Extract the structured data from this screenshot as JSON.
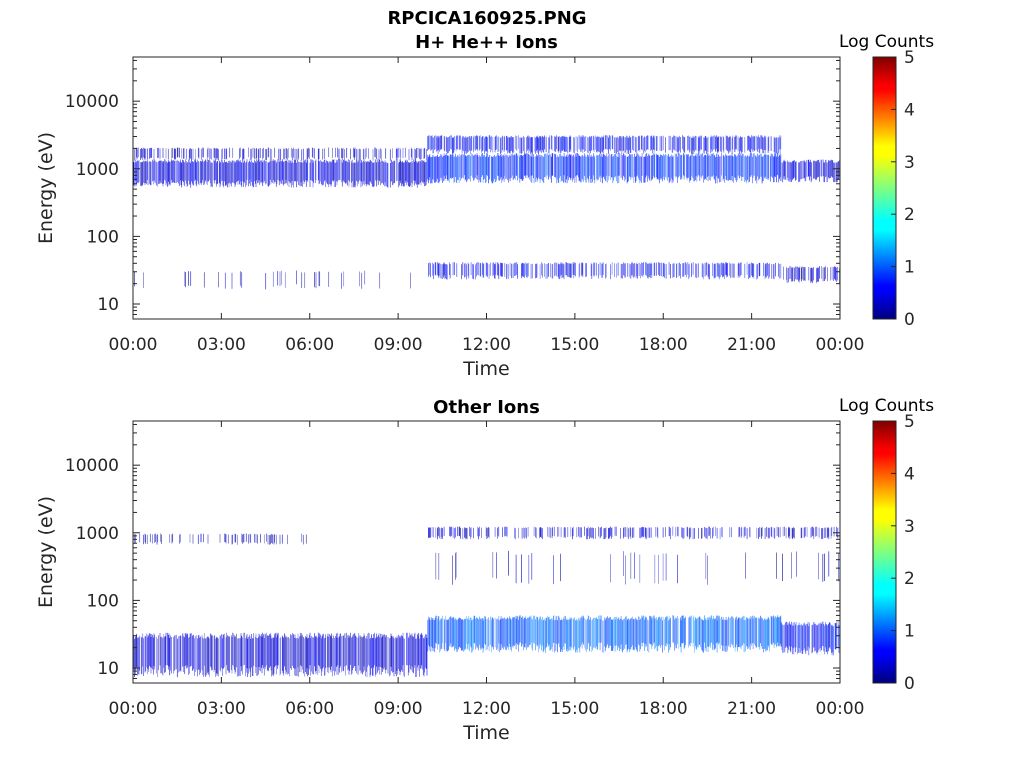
{
  "figure": {
    "title_line1": "RPCICA160925.PNG"
  },
  "chart_data": [
    {
      "type": "heatmap",
      "title": "H+ He++ Ions",
      "xlabel": "Time",
      "ylabel": "Energy (eV)",
      "y_scale": "log",
      "ylim": [
        6,
        45000
      ],
      "xlim_hours": [
        0,
        24
      ],
      "x_ticks": [
        "00:00",
        "03:00",
        "06:00",
        "09:00",
        "12:00",
        "15:00",
        "18:00",
        "21:00",
        "00:00"
      ],
      "y_ticks": [
        "10",
        "100",
        "1000",
        "10000"
      ],
      "colorbar": {
        "title": "Log Counts",
        "range": [
          0,
          5
        ],
        "ticks": [
          "0",
          "1",
          "2",
          "3",
          "4",
          "5"
        ],
        "colormap": "jet"
      },
      "bands": [
        {
          "t0": 0.0,
          "t1": 10.0,
          "e0": 600,
          "e1": 1300,
          "level": 0.45,
          "density": 0.95
        },
        {
          "t0": 0.0,
          "t1": 10.0,
          "e0": 1400,
          "e1": 2000,
          "level": 0.35,
          "density": 0.45
        },
        {
          "t0": 10.0,
          "t1": 22.0,
          "e0": 700,
          "e1": 1600,
          "level": 0.85,
          "density": 0.95
        },
        {
          "t0": 10.0,
          "t1": 22.0,
          "e0": 1800,
          "e1": 3000,
          "level": 0.6,
          "density": 0.75
        },
        {
          "t0": 22.0,
          "t1": 24.0,
          "e0": 700,
          "e1": 1300,
          "level": 0.45,
          "density": 0.9
        },
        {
          "t0": 10.0,
          "t1": 22.0,
          "e0": 25,
          "e1": 40,
          "level": 0.6,
          "density": 0.55
        },
        {
          "t0": 22.0,
          "t1": 24.0,
          "e0": 22,
          "e1": 35,
          "level": 0.35,
          "density": 0.6
        },
        {
          "t0": 0.0,
          "t1": 10.0,
          "e0": 18,
          "e1": 30,
          "level": 0.2,
          "density": 0.08
        }
      ]
    },
    {
      "type": "heatmap",
      "title": "Other Ions",
      "xlabel": "Time",
      "ylabel": "Energy (eV)",
      "y_scale": "log",
      "ylim": [
        6,
        45000
      ],
      "xlim_hours": [
        0,
        24
      ],
      "x_ticks": [
        "00:00",
        "03:00",
        "06:00",
        "09:00",
        "12:00",
        "15:00",
        "18:00",
        "21:00",
        "00:00"
      ],
      "y_ticks": [
        "10",
        "100",
        "1000",
        "10000"
      ],
      "colorbar": {
        "title": "Log Counts",
        "range": [
          0,
          5
        ],
        "ticks": [
          "0",
          "1",
          "2",
          "3",
          "4",
          "5"
        ],
        "colormap": "jet"
      },
      "bands": [
        {
          "t0": 0.0,
          "t1": 10.0,
          "e0": 9,
          "e1": 30,
          "level": 0.4,
          "density": 0.9
        },
        {
          "t0": 10.0,
          "t1": 22.0,
          "e0": 20,
          "e1": 55,
          "level": 1.1,
          "density": 0.95
        },
        {
          "t0": 22.0,
          "t1": 24.0,
          "e0": 18,
          "e1": 45,
          "level": 0.7,
          "density": 0.9
        },
        {
          "t0": 0.0,
          "t1": 6.0,
          "e0": 700,
          "e1": 950,
          "level": 0.25,
          "density": 0.3
        },
        {
          "t0": 10.0,
          "t1": 24.0,
          "e0": 850,
          "e1": 1200,
          "level": 0.4,
          "density": 0.45
        },
        {
          "t0": 10.0,
          "t1": 24.0,
          "e0": 200,
          "e1": 500,
          "level": 0.3,
          "density": 0.06
        }
      ]
    }
  ]
}
